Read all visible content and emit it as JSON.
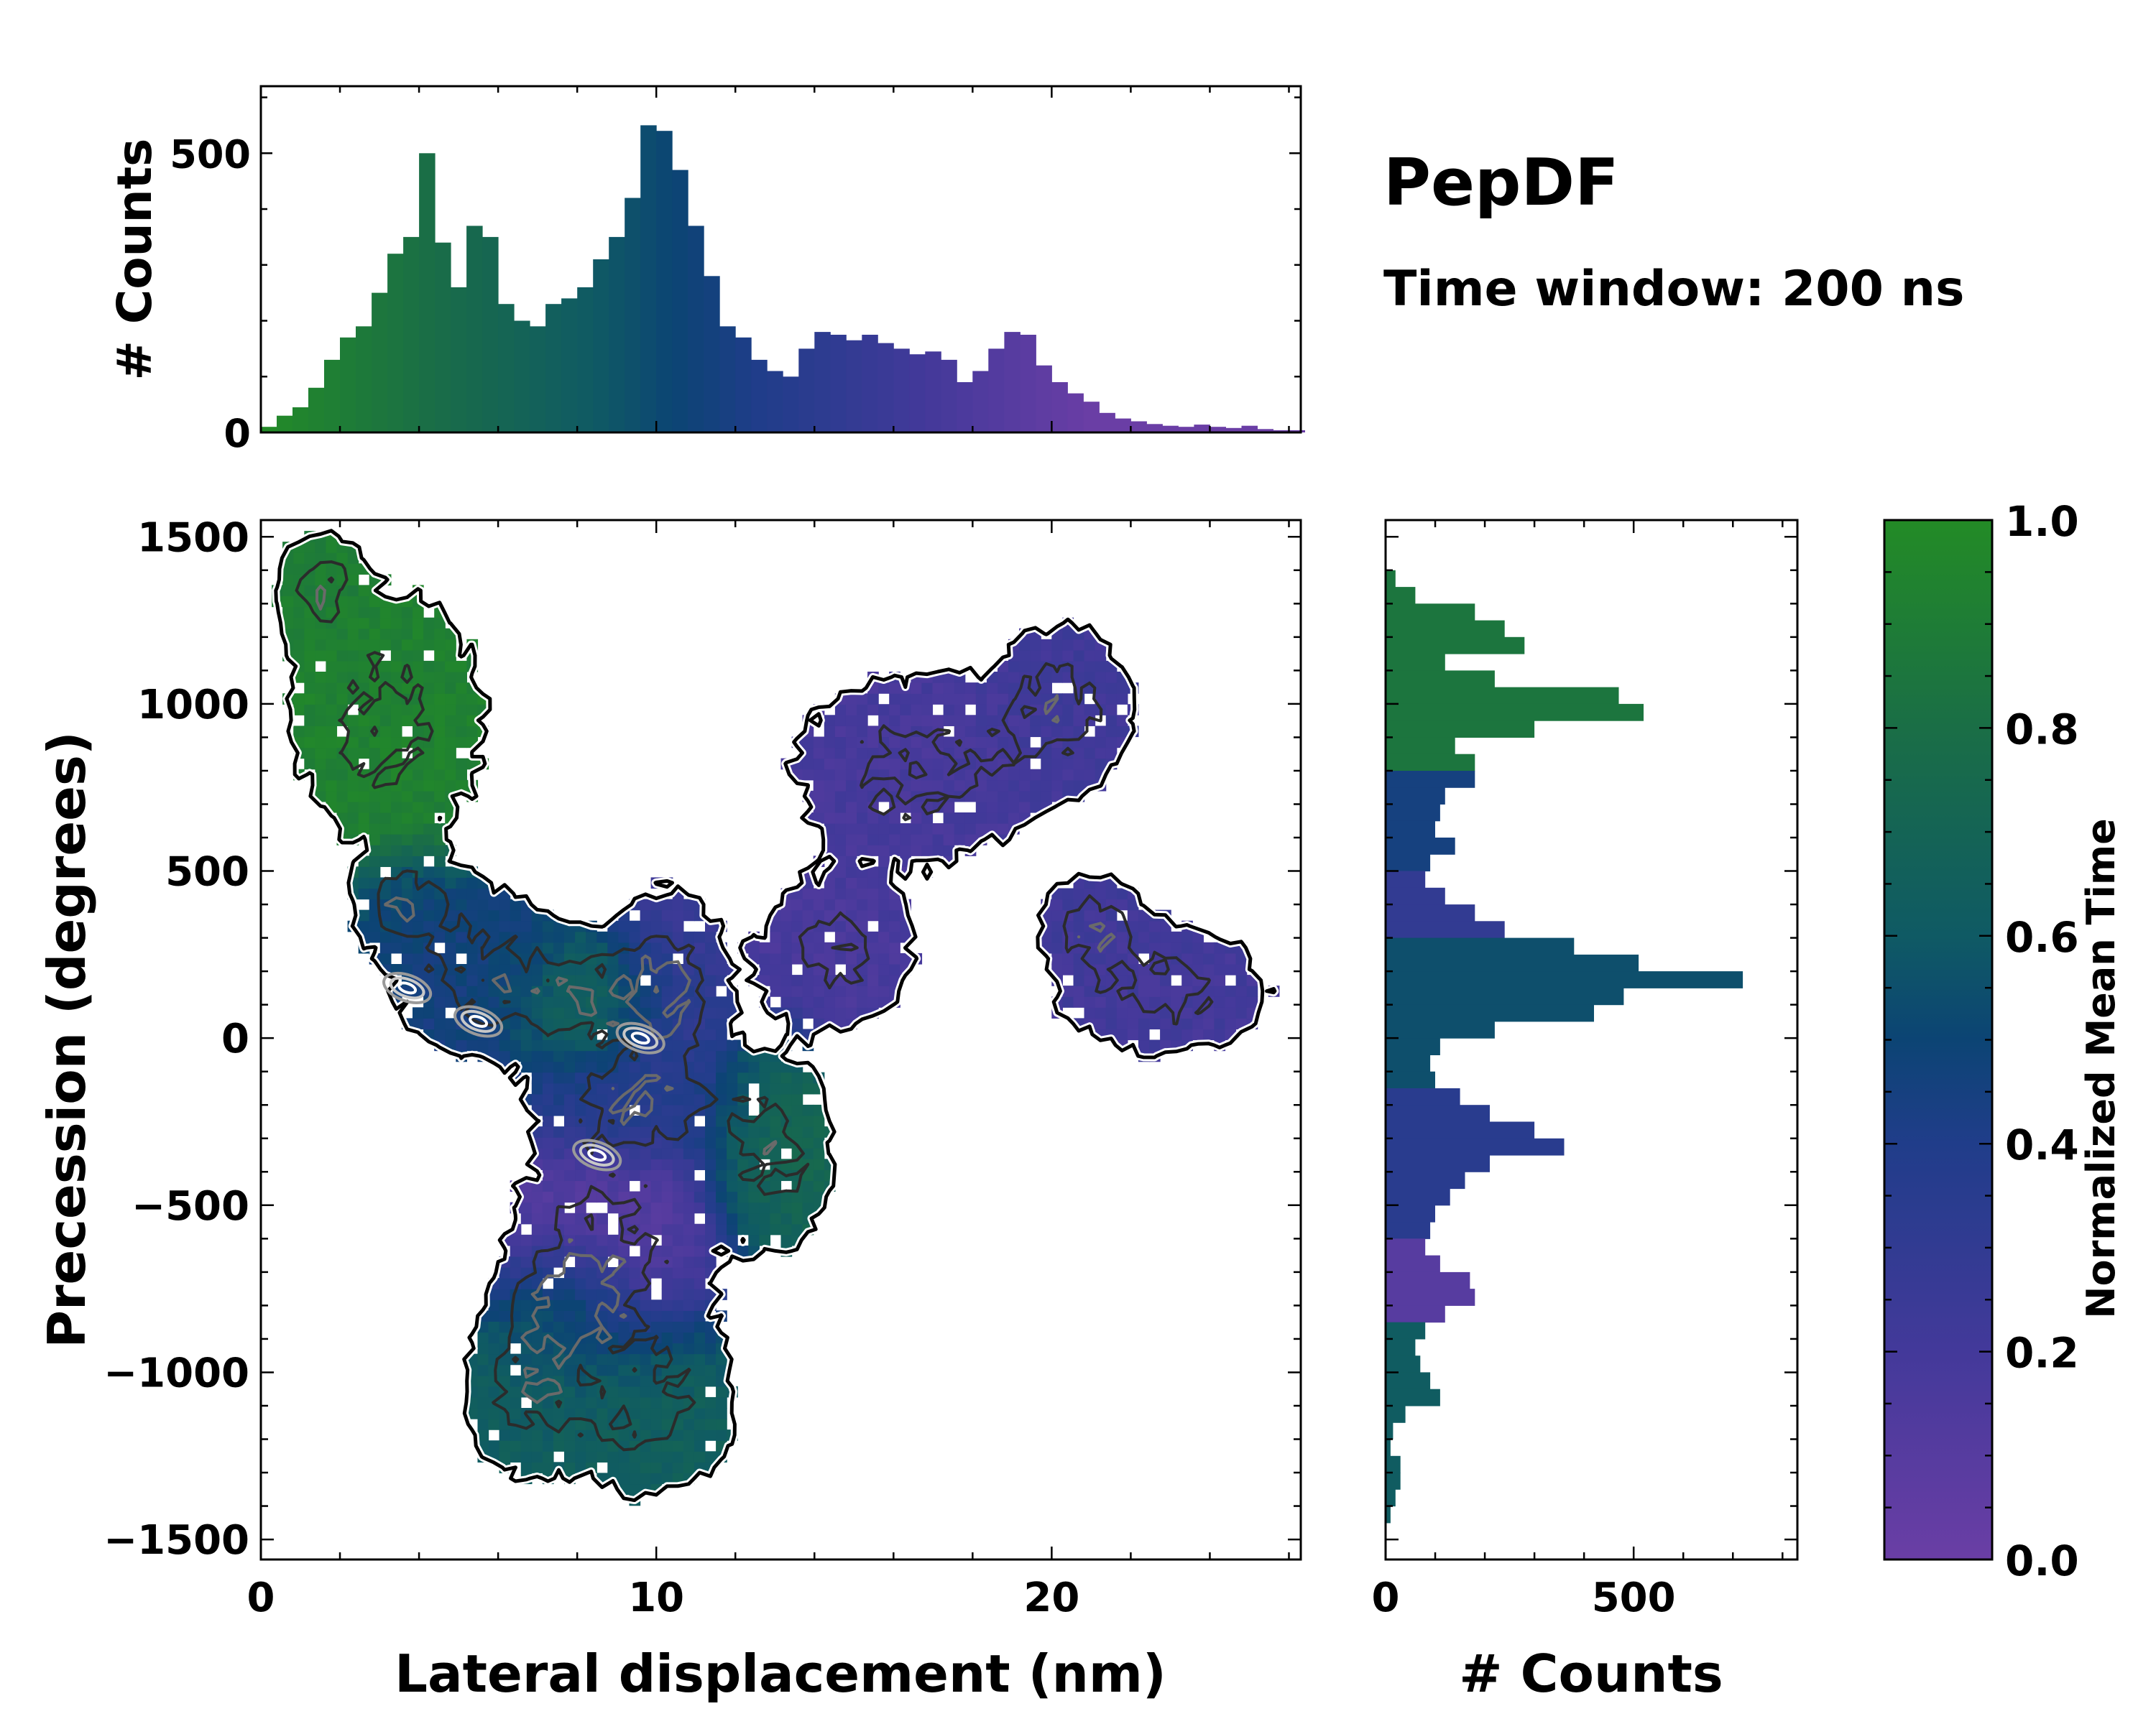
{
  "chart_data": [
    {
      "id": "top_histogram",
      "type": "bar",
      "title": "",
      "xlabel": "",
      "ylabel": "# Counts",
      "xlim": [
        0,
        26.3
      ],
      "ylim": [
        0,
        620
      ],
      "yticks": [
        0,
        500
      ],
      "ytick_labels": [
        "0",
        "500"
      ],
      "x": [
        0.2,
        0.6,
        1.0,
        1.4,
        1.8,
        2.2,
        2.6,
        3.0,
        3.4,
        3.8,
        4.2,
        4.6,
        5.0,
        5.4,
        5.8,
        6.2,
        6.6,
        7.0,
        7.4,
        7.8,
        8.2,
        8.6,
        9.0,
        9.4,
        9.8,
        10.2,
        10.6,
        11.0,
        11.4,
        11.8,
        12.2,
        12.6,
        13.0,
        13.4,
        13.8,
        14.2,
        14.6,
        15.0,
        15.4,
        15.8,
        16.2,
        16.6,
        17.0,
        17.4,
        17.8,
        18.2,
        18.6,
        19.0,
        19.4,
        19.8,
        20.2,
        20.6,
        21.0,
        21.4,
        21.8,
        22.2,
        22.6,
        23.0,
        23.4,
        23.8,
        24.2,
        24.6,
        25.0,
        25.4,
        25.8,
        26.2
      ],
      "values": [
        10,
        30,
        45,
        80,
        130,
        170,
        190,
        250,
        320,
        350,
        500,
        340,
        260,
        370,
        350,
        230,
        200,
        190,
        230,
        240,
        260,
        310,
        350,
        420,
        550,
        540,
        470,
        370,
        280,
        190,
        170,
        130,
        110,
        100,
        150,
        180,
        175,
        165,
        175,
        160,
        150,
        140,
        145,
        130,
        90,
        110,
        150,
        180,
        175,
        120,
        90,
        70,
        55,
        35,
        25,
        20,
        15,
        12,
        10,
        14,
        10,
        8,
        12,
        6,
        4,
        4
      ],
      "bar_colors": "same as Normalized Mean Time colormap (green early, purple late)"
    },
    {
      "id": "main_map",
      "type": "heatmap",
      "xlabel": "Lateral displacement (nm)",
      "ylabel": "Precession (degrees)",
      "xlim": [
        0,
        26.3
      ],
      "ylim": [
        -1560,
        1550
      ],
      "xticks": [
        0,
        10,
        20
      ],
      "xtick_labels": [
        "0",
        "10",
        "20"
      ],
      "yticks": [
        -1500,
        -1000,
        -500,
        0,
        500,
        1000,
        1500
      ],
      "ytick_labels": [
        "−1500",
        "−1000",
        "−500",
        "0",
        "500",
        "1000",
        "1500"
      ],
      "blobs": [
        {
          "cx": 3.2,
          "cy": 950,
          "rx": 2.9,
          "ry": 450,
          "value": 0.93
        },
        {
          "cx": 1.5,
          "cy": 1350,
          "rx": 1.2,
          "ry": 180,
          "value": 0.9
        },
        {
          "cx": 5.5,
          "cy": 200,
          "rx": 2.6,
          "ry": 300,
          "value": 0.45
        },
        {
          "cx": 3.6,
          "cy": 400,
          "rx": 1.3,
          "ry": 150,
          "value": 0.48
        },
        {
          "cx": 8.5,
          "cy": 120,
          "rx": 2.4,
          "ry": 200,
          "value": 0.7
        },
        {
          "cx": 10.3,
          "cy": 150,
          "rx": 1.6,
          "ry": 350,
          "value": 0.25
        },
        {
          "cx": 9.5,
          "cy": -200,
          "rx": 2.9,
          "ry": 180,
          "value": 0.42
        },
        {
          "cx": 8.8,
          "cy": -600,
          "rx": 3.0,
          "ry": 350,
          "value": 0.12
        },
        {
          "cx": 13.0,
          "cy": -350,
          "rx": 1.7,
          "ry": 330,
          "value": 0.72
        },
        {
          "cx": 6.7,
          "cy": -1050,
          "rx": 1.8,
          "ry": 300,
          "value": 0.63
        },
        {
          "cx": 9.8,
          "cy": -1100,
          "rx": 2.5,
          "ry": 320,
          "value": 0.65
        },
        {
          "cx": 7.8,
          "cy": -800,
          "rx": 1.5,
          "ry": 180,
          "value": 0.62
        },
        {
          "cx": 14.5,
          "cy": 250,
          "rx": 2.3,
          "ry": 250,
          "value": 0.17
        },
        {
          "cx": 16.5,
          "cy": 800,
          "rx": 3.6,
          "ry": 330,
          "value": 0.18
        },
        {
          "cx": 20.3,
          "cy": 1000,
          "rx": 2.0,
          "ry": 280,
          "value": 0.22
        },
        {
          "cx": 22.8,
          "cy": 150,
          "rx": 3.1,
          "ry": 230,
          "value": 0.2
        },
        {
          "cx": 21.0,
          "cy": 350,
          "rx": 1.4,
          "ry": 160,
          "value": 0.22
        }
      ],
      "contour_levels": [
        0.002,
        0.3,
        0.6,
        0.85
      ],
      "contour_colors": [
        "#000000",
        "#2b2b2b",
        "#6a6a6a",
        "#9a9a9a"
      ],
      "hotspots": [
        {
          "x": 3.7,
          "y": 150
        },
        {
          "x": 5.5,
          "y": 50
        },
        {
          "x": 9.6,
          "y": 0
        },
        {
          "x": 8.5,
          "y": -350
        }
      ]
    },
    {
      "id": "right_histogram",
      "type": "bar",
      "orientation": "horizontal",
      "xlabel": "# Counts",
      "xlim": [
        0,
        830
      ],
      "ylim": [
        -1560,
        1550
      ],
      "xticks": [
        0,
        500
      ],
      "xtick_labels": [
        "0",
        "500"
      ],
      "y": [
        1375,
        1325,
        1275,
        1225,
        1175,
        1125,
        1075,
        1025,
        975,
        925,
        875,
        825,
        775,
        725,
        675,
        625,
        575,
        525,
        475,
        425,
        375,
        325,
        275,
        225,
        175,
        125,
        75,
        25,
        -25,
        -75,
        -125,
        -175,
        -225,
        -275,
        -325,
        -375,
        -425,
        -475,
        -525,
        -575,
        -625,
        -675,
        -725,
        -775,
        -825,
        -875,
        -925,
        -975,
        -1025,
        -1075,
        -1125,
        -1175,
        -1225,
        -1275,
        -1325,
        -1375,
        -1425
      ],
      "values": [
        20,
        60,
        180,
        240,
        280,
        120,
        220,
        470,
        520,
        300,
        140,
        180,
        180,
        120,
        110,
        100,
        140,
        90,
        80,
        120,
        180,
        240,
        380,
        510,
        720,
        480,
        420,
        220,
        110,
        90,
        100,
        150,
        210,
        300,
        360,
        210,
        160,
        130,
        100,
        90,
        80,
        110,
        170,
        180,
        120,
        80,
        60,
        70,
        90,
        110,
        40,
        15,
        10,
        30,
        30,
        20,
        10
      ],
      "bar_colors": "same as Normalized Mean Time colormap"
    },
    {
      "id": "colorbar",
      "type": "colorbar",
      "label": "Normalized Mean Time",
      "range": [
        0.0,
        1.0
      ],
      "ticks": [
        0.0,
        0.2,
        0.4,
        0.6,
        0.8,
        1.0
      ],
      "tick_labels": [
        "0.0",
        "0.2",
        "0.4",
        "0.6",
        "0.8",
        "1.0"
      ],
      "stops": [
        {
          "v": 0.0,
          "color": "#6a3ea5"
        },
        {
          "v": 0.2,
          "color": "#43399a"
        },
        {
          "v": 0.4,
          "color": "#203d8a"
        },
        {
          "v": 0.5,
          "color": "#0c4474"
        },
        {
          "v": 0.6,
          "color": "#0f5a64"
        },
        {
          "v": 0.8,
          "color": "#1a6e46"
        },
        {
          "v": 1.0,
          "color": "#238b26"
        }
      ]
    }
  ],
  "annotations": {
    "name": "PepDF",
    "subtitle": "Time window: 200 ns"
  }
}
